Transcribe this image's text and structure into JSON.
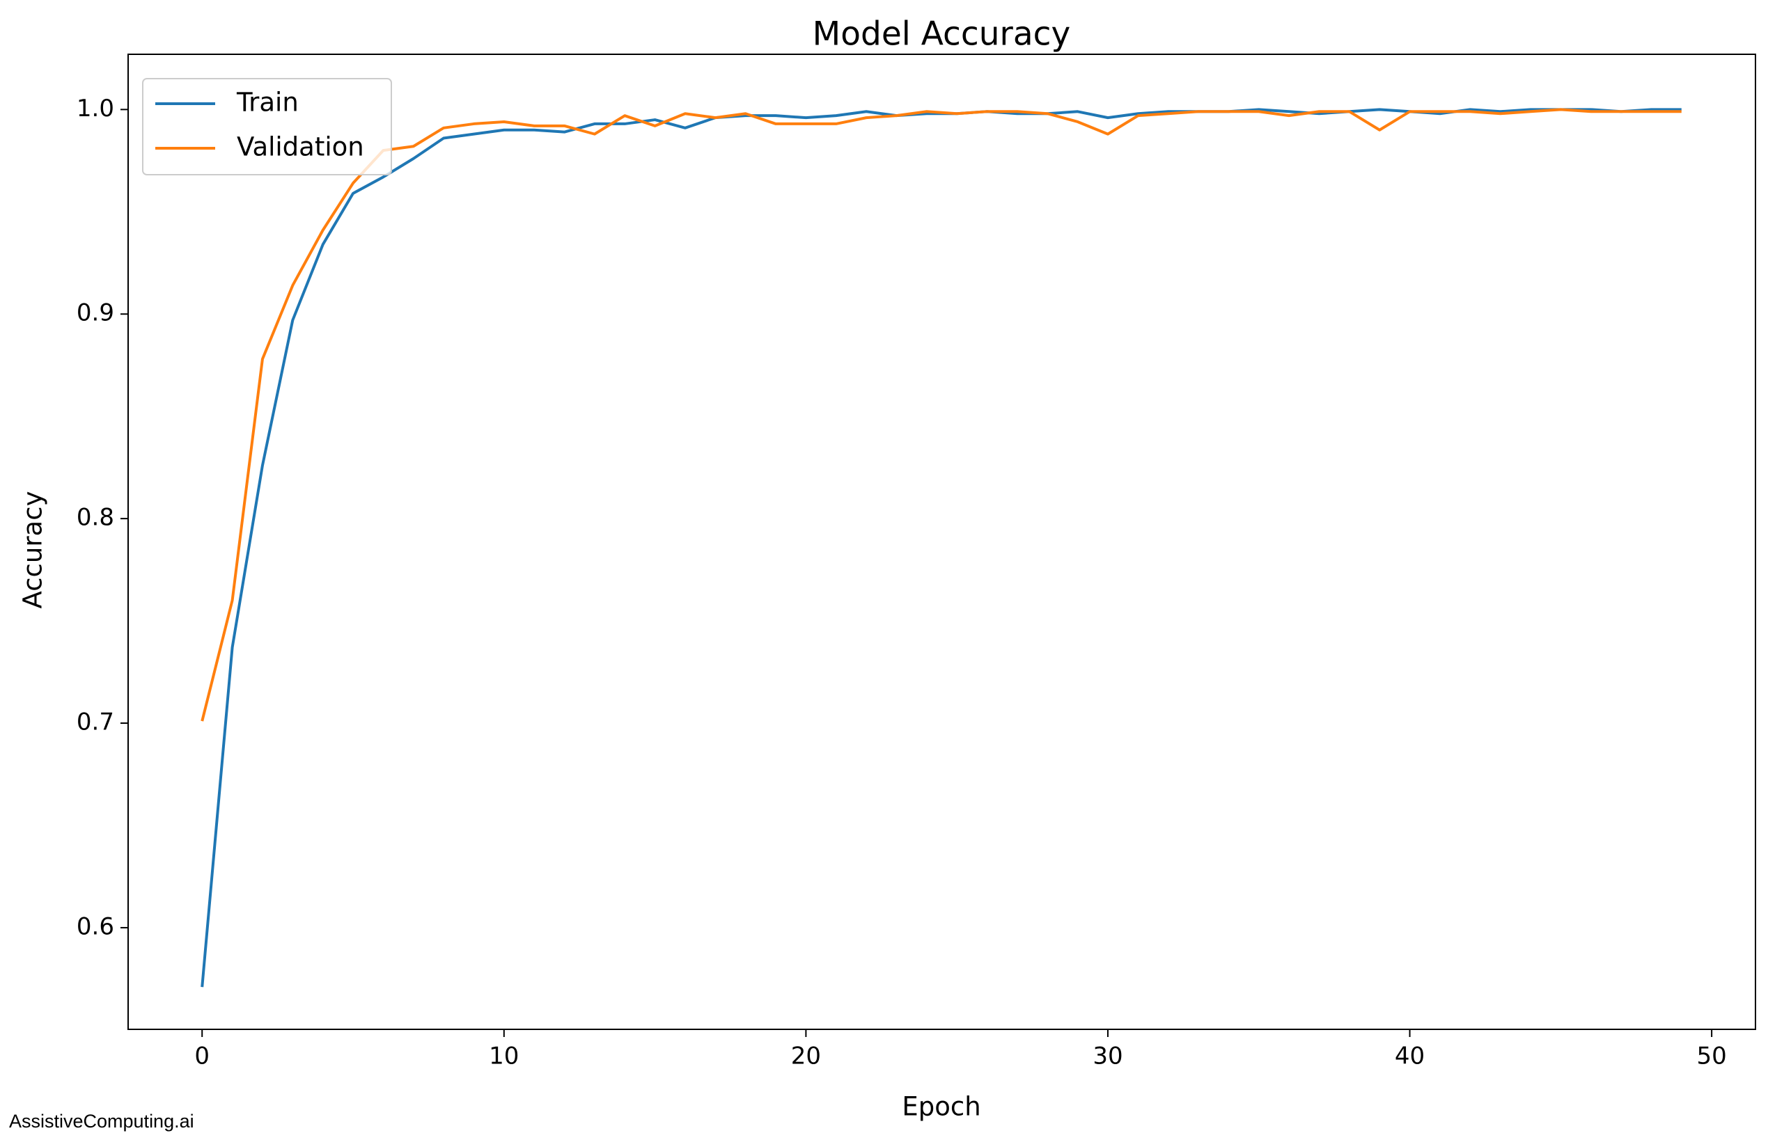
{
  "chart_data": {
    "type": "line",
    "title": "Model Accuracy",
    "x_label": "Epoch",
    "y_label": "Accuracy",
    "x": [
      0,
      1,
      2,
      3,
      4,
      5,
      6,
      7,
      8,
      9,
      10,
      11,
      12,
      13,
      14,
      15,
      16,
      17,
      18,
      19,
      20,
      21,
      22,
      23,
      24,
      25,
      26,
      27,
      28,
      29,
      30,
      31,
      32,
      33,
      34,
      35,
      36,
      37,
      38,
      39,
      40,
      41,
      42,
      43,
      44,
      45,
      46,
      47,
      48,
      49
    ],
    "series": [
      {
        "name": "Train",
        "color": "#1f77b4",
        "values": [
          0.571,
          0.737,
          0.826,
          0.897,
          0.934,
          0.959,
          0.967,
          0.976,
          0.986,
          0.988,
          0.99,
          0.99,
          0.989,
          0.993,
          0.993,
          0.995,
          0.991,
          0.996,
          0.997,
          0.997,
          0.996,
          0.997,
          0.999,
          0.997,
          0.998,
          0.998,
          0.999,
          0.998,
          0.998,
          0.999,
          0.996,
          0.998,
          0.999,
          0.999,
          0.999,
          1.0,
          0.999,
          0.998,
          0.999,
          1.0,
          0.999,
          0.998,
          1.0,
          0.999,
          1.0,
          1.0,
          1.0,
          0.999,
          1.0,
          1.0
        ]
      },
      {
        "name": "Validation",
        "color": "#ff7f0e",
        "values": [
          0.701,
          0.76,
          0.878,
          0.914,
          0.941,
          0.964,
          0.98,
          0.982,
          0.991,
          0.993,
          0.994,
          0.992,
          0.992,
          0.988,
          0.997,
          0.992,
          0.998,
          0.996,
          0.998,
          0.993,
          0.993,
          0.993,
          0.996,
          0.997,
          0.999,
          0.998,
          0.999,
          0.999,
          0.998,
          0.994,
          0.988,
          0.997,
          0.998,
          0.999,
          0.999,
          0.999,
          0.997,
          0.999,
          0.999,
          0.99,
          0.999,
          0.999,
          0.999,
          0.998,
          0.999,
          1.0,
          0.999,
          0.999,
          0.999,
          0.999
        ]
      }
    ],
    "xlim": [
      -2.45,
      51.45
    ],
    "ylim": [
      0.5503,
      1.027
    ],
    "xticks": [
      0,
      10,
      20,
      30,
      40,
      50
    ],
    "yticks": [
      0.6,
      0.7,
      0.8,
      0.9,
      {
        "value": 1,
        "label": "1.0"
      }
    ],
    "legend": "upper left"
  },
  "watermark": "AssistiveComputing.ai"
}
